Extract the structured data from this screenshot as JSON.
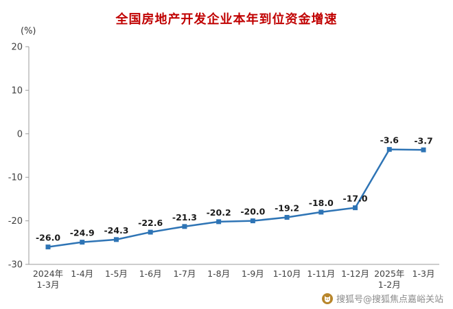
{
  "title": "全国房地产开发企业本年到位资金增速",
  "y_unit_label": "(%)",
  "watermark": {
    "icon": "sohu-fox-icon",
    "text": "搜狐号@搜狐焦点嘉峪关站"
  },
  "colors": {
    "title": "#c00000",
    "line": "#2e74b5",
    "marker": "#2e74b5",
    "axis": "#9b9b9b",
    "tick_text": "#404040",
    "data_label": "#1a1a1a",
    "watermark_text": "#8c8c8c",
    "watermark_icon": "#b8862b"
  },
  "chart_data": {
    "type": "line",
    "title": "全国房地产开发企业本年到位资金增速",
    "ylabel": "(%)",
    "xlabel": "",
    "ylim": [
      -30,
      20
    ],
    "yticks": [
      20,
      10,
      0,
      -10,
      -20,
      -30
    ],
    "grid": false,
    "legend": "none",
    "x": [
      "2024年\n1-3月",
      "1-4月",
      "1-5月",
      "1-6月",
      "1-7月",
      "1-8月",
      "1-9月",
      "1-10月",
      "1-11月",
      "1-12月",
      "2025年\n1-2月",
      "1-3月"
    ],
    "values": [
      -26.0,
      -24.9,
      -24.3,
      -22.6,
      -21.3,
      -20.2,
      -20.0,
      -19.2,
      -18.0,
      -17.0,
      -3.6,
      -3.7
    ],
    "labels": [
      "-26.0",
      "-24.9",
      "-24.3",
      "-22.6",
      "-21.3",
      "-20.2",
      "-20.0",
      "-19.2",
      "-18.0",
      "-17.0",
      "-3.6",
      "-3.7"
    ]
  }
}
